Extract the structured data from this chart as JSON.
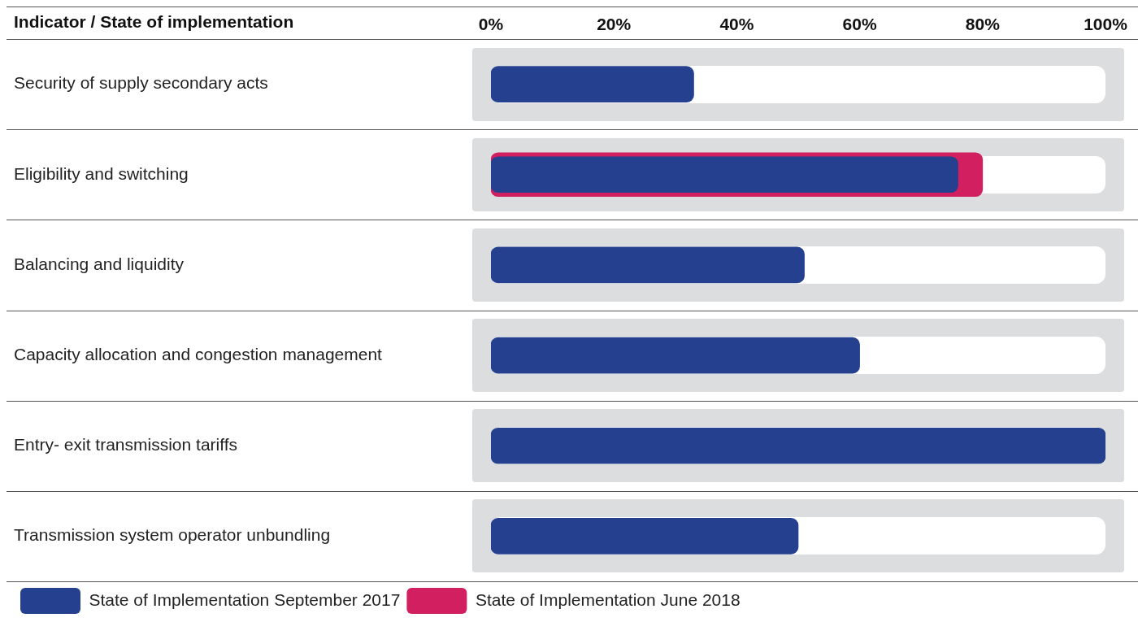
{
  "chart_data": {
    "type": "bar",
    "orientation": "horizontal",
    "ylabel": "Indicator / State of implementation",
    "categories": [
      "Security of supply secondary acts",
      "Eligibility and switching",
      "Balancing and liquidity",
      "Capacity allocation and congestion management",
      "Entry- exit transmission tariffs",
      "Transmission system operator unbundling"
    ],
    "series": [
      {
        "name": "State of Implementation September 2017",
        "color": "#25408f",
        "values": [
          33,
          76,
          51,
          60,
          100,
          50
        ]
      },
      {
        "name": "State of Implementation June 2018",
        "color": "#d21f5f",
        "values": [
          null,
          80,
          null,
          null,
          null,
          null
        ]
      }
    ],
    "xlim": [
      0,
      100
    ],
    "xticks": [
      {
        "value": 0,
        "label": "0%"
      },
      {
        "value": 20,
        "label": "20%"
      },
      {
        "value": 40,
        "label": "40%"
      },
      {
        "value": 60,
        "label": "60%"
      },
      {
        "value": 80,
        "label": "80%"
      },
      {
        "value": 100,
        "label": "100%"
      }
    ],
    "grid": "y",
    "legend": "bottom left"
  }
}
